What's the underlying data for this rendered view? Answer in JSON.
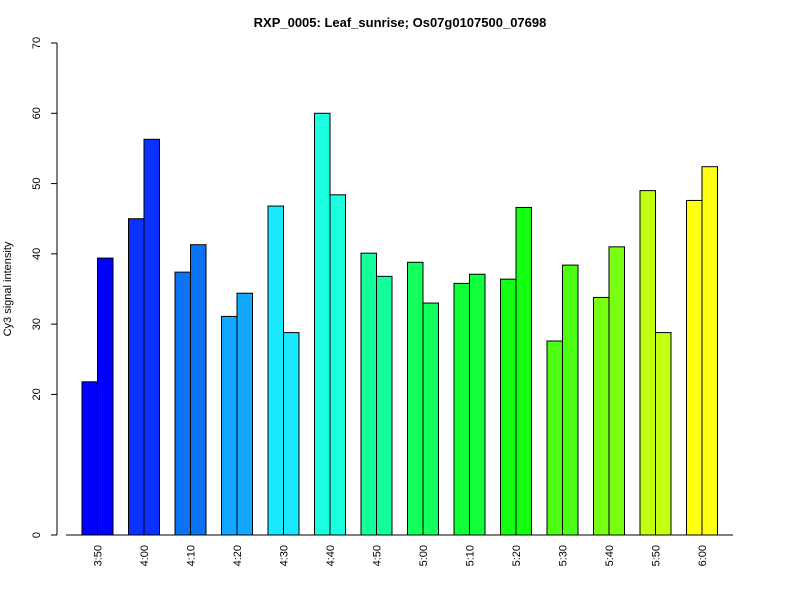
{
  "chart_data": {
    "type": "bar",
    "title": "RXP_0005: Leaf_sunrise; Os07g0107500_07698",
    "xlabel": "",
    "ylabel": "Cy3 signal intensity",
    "ylim": [
      0,
      70
    ],
    "yticks": [
      0,
      20,
      30,
      40,
      50,
      60,
      70
    ],
    "grid": false,
    "categories": [
      "3:50",
      "4:00",
      "4:10",
      "4:20",
      "4:30",
      "4:40",
      "4:50",
      "5:00",
      "5:10",
      "5:20",
      "5:30",
      "5:40",
      "5:50",
      "6:00"
    ],
    "colors": [
      "#0000ff",
      "#0a32ff",
      "#0d73f5",
      "#12a8ff",
      "#1ae8ff",
      "#1affe0",
      "#12ff9c",
      "#12ff5c",
      "#12ff3c",
      "#12ff12",
      "#4cff12",
      "#78ff12",
      "#c2ff12",
      "#ffff12"
    ],
    "series": [
      {
        "values": [
          21.8,
          45.0,
          37.4,
          31.1,
          46.8,
          60.0,
          40.1,
          38.8,
          35.8,
          36.4,
          27.6,
          33.8,
          49.0,
          47.6
        ]
      },
      {
        "values": [
          39.4,
          56.3,
          41.3,
          34.4,
          28.8,
          48.4,
          36.8,
          33.0,
          37.1,
          46.6,
          38.4,
          41.0,
          28.8,
          52.4
        ]
      }
    ]
  }
}
